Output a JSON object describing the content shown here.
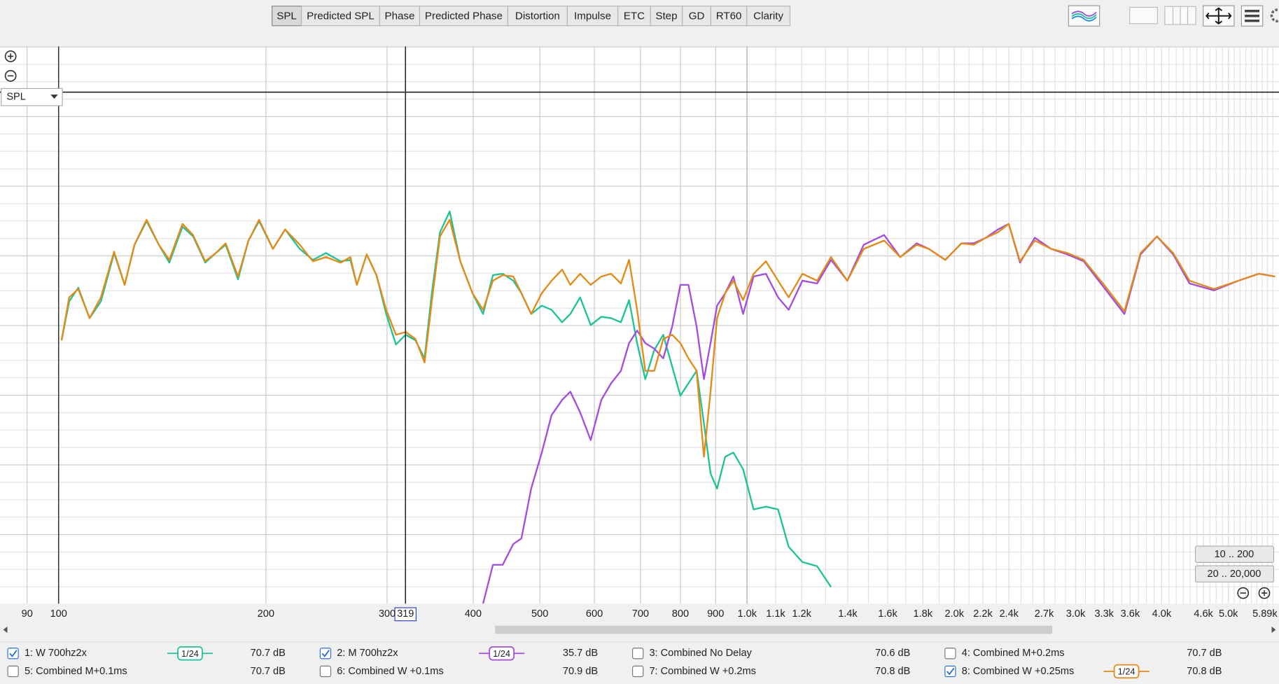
{
  "toolbar": {
    "tabs": [
      "SPL",
      "Predicted SPL",
      "Phase",
      "Predicted Phase",
      "Distortion",
      "Impulse",
      "ETC",
      "Step",
      "GD",
      "RT60",
      "Clarity"
    ],
    "selected": 0
  },
  "graph_selector": "SPL",
  "range_buttons": [
    "10 .. 200",
    "20 .. 20,000"
  ],
  "chart_data": {
    "type": "line",
    "log_x": true,
    "xlim": [
      82.2,
      5890
    ],
    "ylim": [
      51.8,
      92
    ],
    "xticks": [
      90,
      100,
      200,
      300,
      400,
      500,
      600,
      700,
      800,
      900,
      {
        "value": 1000,
        "label": "1.0k"
      },
      {
        "value": 1100,
        "label": "1.1k"
      },
      {
        "value": 1200,
        "label": "1.2k"
      },
      {
        "value": 1400,
        "label": "1.4k"
      },
      {
        "value": 1600,
        "label": "1.6k"
      },
      {
        "value": 1800,
        "label": "1.8k"
      },
      {
        "value": 2000,
        "label": "2.0k"
      },
      {
        "value": 2200,
        "label": "2.2k"
      },
      {
        "value": 2400,
        "label": "2.4k"
      },
      {
        "value": 2700,
        "label": "2.7k"
      },
      {
        "value": 3000,
        "label": "3.0k"
      },
      {
        "value": 3300,
        "label": "3.3k"
      },
      {
        "value": 3600,
        "label": "3.6k"
      },
      {
        "value": 4000,
        "label": "4.0k"
      },
      {
        "value": 4600,
        "label": "4.6k"
      },
      {
        "value": 5000,
        "label": "5.0k"
      },
      {
        "value": 5890,
        "label": "5.89k"
      }
    ],
    "cursor": 319,
    "x": [
      101,
      103.6,
      106.8,
      110.9,
      115.2,
      120.4,
      124.7,
      128.9,
      134.2,
      139.8,
      144.8,
      151.3,
      156.8,
      163.3,
      169.2,
      174.8,
      182.2,
      188.7,
      195.5,
      204.8,
      213.3,
      224,
      234,
      244.5,
      256.8,
      265.3,
      271.1,
      280.2,
      289.5,
      299.1,
      309,
      319.2,
      329.8,
      340,
      348.4,
      358,
      369.8,
      383.2,
      399.1,
      413.5,
      427.3,
      441.6,
      457.5,
      470.1,
      485.7,
      503.2,
      520,
      538.8,
      553.7,
      572.1,
      592.7,
      614.1,
      634.5,
      655.6,
      673.7,
      692.3,
      711.4,
      733,
      755.3,
      778.3,
      799.8,
      821.9,
      844.6,
      865.6,
      884.9,
      904.3,
      929.3,
      955,
      986.5,
      1022,
      1065,
      1109,
      1149,
      1203,
      1264,
      1324,
      1398,
      1477,
      1581,
      1669,
      1763,
      1836,
      1940,
      2048,
      2133,
      2222,
      2314,
      2399,
      2491,
      2617,
      2764,
      2918,
      3082,
      3299,
      3532,
      3728,
      3938,
      4158,
      4391,
      4764,
      5171,
      5537,
      5847
    ],
    "series": [
      {
        "name": "1: W 700hz2x",
        "color": "#1dc396",
        "checked": true,
        "smoothing": "1/24",
        "readout": "70.7 dB",
        "values": [
          70.8,
          73.6,
          74.6,
          72.4,
          73.6,
          77.1,
          74.8,
          77.7,
          79.4,
          77.7,
          76.4,
          79.0,
          78.3,
          76.4,
          77.1,
          77.7,
          75.2,
          78.0,
          79.4,
          77.4,
          78.8,
          77.4,
          76.6,
          77.1,
          76.5,
          76.6,
          74.8,
          77.0,
          75.5,
          72.7,
          70.5,
          71.2,
          70.8,
          69.5,
          74.2,
          78.6,
          80.1,
          76.5,
          74.2,
          72.7,
          75.5,
          75.6,
          75.1,
          74.2,
          72.7,
          73.3,
          73.0,
          72.1,
          72.7,
          73.9,
          71.9,
          72.5,
          72.4,
          72.1,
          73.7,
          70.6,
          68.0,
          70.1,
          71.2,
          68.9,
          66.8,
          67.7,
          68.6,
          64.8,
          61.2,
          60.1,
          62.4,
          62.7,
          61.5,
          58.6,
          58.8,
          58.6,
          55.9,
          54.8,
          54.5,
          53.0,
          null,
          null,
          null,
          null,
          null,
          null,
          null,
          null,
          null,
          null,
          null,
          null,
          null,
          null,
          null,
          null,
          null,
          null,
          null,
          null,
          null,
          null,
          null,
          null,
          null,
          null,
          null
        ]
      },
      {
        "name": "2: M 700hz2x",
        "color": "#a24ddf",
        "checked": true,
        "smoothing": "1/24",
        "readout": "35.7 dB",
        "values": [
          null,
          null,
          null,
          null,
          null,
          null,
          null,
          null,
          null,
          null,
          null,
          null,
          null,
          null,
          null,
          null,
          null,
          null,
          null,
          null,
          null,
          null,
          null,
          null,
          null,
          null,
          null,
          null,
          null,
          null,
          null,
          null,
          null,
          null,
          null,
          null,
          null,
          null,
          null,
          51.8,
          54.6,
          54.6,
          56.1,
          56.5,
          60.1,
          62.7,
          65.4,
          66.5,
          67.1,
          65.6,
          63.6,
          66.5,
          67.7,
          68.6,
          70.6,
          71.5,
          70.6,
          70.2,
          69.5,
          71.8,
          74.8,
          74.8,
          71.8,
          68.0,
          70.6,
          73.3,
          74.2,
          75.4,
          72.7,
          75.4,
          75.6,
          73.9,
          73.0,
          75.1,
          74.9,
          76.6,
          75.1,
          77.7,
          78.4,
          76.8,
          77.8,
          77.4,
          76.6,
          77.8,
          77.8,
          78.2,
          78.8,
          79.2,
          76.4,
          78.2,
          77.4,
          77.0,
          76.5,
          74.6,
          72.7,
          77.0,
          78.3,
          77.0,
          74.9,
          74.4,
          75.1,
          75.6,
          75.4
        ]
      },
      {
        "name": "3: Combined No Delay",
        "color": "#3f78cc",
        "checked": false,
        "readout": "70.6 dB"
      },
      {
        "name": "4: Combined M+0.2ms",
        "color": "#ee8f1d",
        "checked": false,
        "readout": "70.7 dB"
      },
      {
        "name": "5: Combined M+0.1ms",
        "color": "#1a8fdc",
        "checked": false,
        "readout": "70.7 dB"
      },
      {
        "name": "6: Combined W +0.1ms",
        "color": "#1e9fcb",
        "checked": false,
        "readout": "70.9 dB"
      },
      {
        "name": "7: Combined W +0.2ms",
        "color": "#7a6de4",
        "checked": false,
        "readout": "70.8 dB"
      },
      {
        "name": "8: Combined W +0.25ms",
        "color": "#e38a17",
        "checked": true,
        "smoothing": "1/24",
        "readout": "70.8 dB",
        "values": [
          70.8,
          73.9,
          74.5,
          72.4,
          73.9,
          77.2,
          74.8,
          77.7,
          79.5,
          77.7,
          76.6,
          79.2,
          78.4,
          76.5,
          77.1,
          77.8,
          75.4,
          78.0,
          79.5,
          77.4,
          78.8,
          77.7,
          76.5,
          76.8,
          76.4,
          76.8,
          74.8,
          77.0,
          75.5,
          73.0,
          71.2,
          71.4,
          70.9,
          69.2,
          73.6,
          78.3,
          79.5,
          76.5,
          74.2,
          73.0,
          75.1,
          75.5,
          75.4,
          74.2,
          72.7,
          74.2,
          75.1,
          75.9,
          74.8,
          75.6,
          74.8,
          75.4,
          75.6,
          74.9,
          76.6,
          73.0,
          68.6,
          68.6,
          70.9,
          71.2,
          70.6,
          69.5,
          68.6,
          62.4,
          67.1,
          72.4,
          74.2,
          75.1,
          73.7,
          75.6,
          76.5,
          75.1,
          73.9,
          75.6,
          75.1,
          76.8,
          75.1,
          77.4,
          78.0,
          76.8,
          77.7,
          77.4,
          76.6,
          77.8,
          77.7,
          78.2,
          78.6,
          79.2,
          76.5,
          78.0,
          77.4,
          77.1,
          76.6,
          74.8,
          72.9,
          77.1,
          78.3,
          77.1,
          75.1,
          74.5,
          75.1,
          75.6,
          75.4
        ]
      }
    ]
  }
}
